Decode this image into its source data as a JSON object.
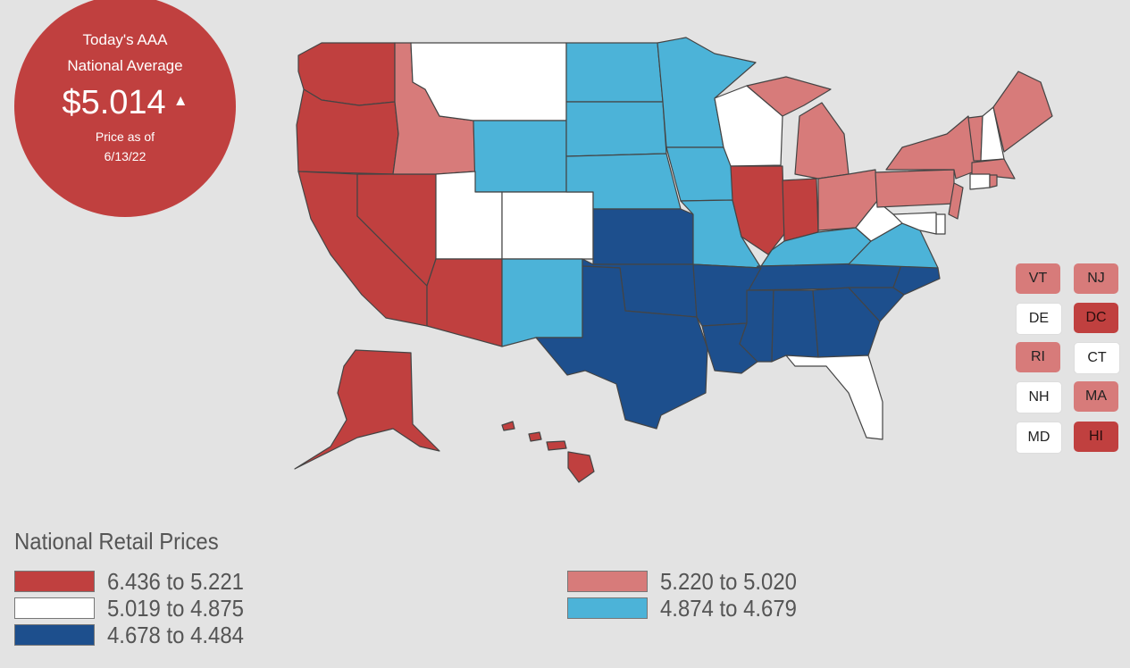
{
  "badge": {
    "line1": "Today's AAA",
    "line2": "National Average",
    "price": "$5.014",
    "trend_icon": "triangle-up-icon",
    "date_line1": "Price as of",
    "date_line2": "6/13/22"
  },
  "colors": {
    "c1": "#c0403f",
    "c2": "#d77b7a",
    "c3": "#ffffff",
    "c4": "#4cb3d8",
    "c5": "#1d4f8d",
    "border": "#444444"
  },
  "states": {
    "WA": "c1",
    "OR": "c1",
    "CA": "c1",
    "NV": "c1",
    "AZ": "c1",
    "AK": "c1",
    "HI": "c1",
    "IL": "c1",
    "IN": "c1",
    "ID": "c2",
    "MI": "c2",
    "OH": "c2",
    "PA": "c2",
    "NY": "c2",
    "ME": "c2",
    "NJ": "c2",
    "VT": "c2",
    "MA": "c2",
    "RI": "c2",
    "MT": "c3",
    "UT": "c3",
    "CO": "c3",
    "WI": "c3",
    "FL": "c3",
    "WV": "c3",
    "NH": "c3",
    "CT": "c3",
    "DE": "c3",
    "MD": "c3",
    "WY": "c4",
    "ND": "c4",
    "SD": "c4",
    "NE": "c4",
    "MN": "c4",
    "IA": "c4",
    "MO": "c4",
    "NM": "c4",
    "KY": "c4",
    "VA": "c4",
    "KS": "c5",
    "OK": "c5",
    "TX": "c5",
    "AR": "c5",
    "LA": "c5",
    "MS": "c5",
    "AL": "c5",
    "GA": "c5",
    "TN": "c5",
    "SC": "c5",
    "NC": "c5"
  },
  "small_states": [
    {
      "label": "VT",
      "color": "c2"
    },
    {
      "label": "NJ",
      "color": "c2"
    },
    {
      "label": "DE",
      "color": "c3"
    },
    {
      "label": "DC",
      "color": "c1"
    },
    {
      "label": "RI",
      "color": "c2"
    },
    {
      "label": "CT",
      "color": "c3"
    },
    {
      "label": "NH",
      "color": "c3"
    },
    {
      "label": "MA",
      "color": "c2"
    },
    {
      "label": "MD",
      "color": "c3"
    },
    {
      "label": "HI",
      "color": "c1"
    }
  ],
  "legend": {
    "title": "National Retail Prices",
    "items": [
      {
        "label": "6.436 to 5.221",
        "color": "c1"
      },
      {
        "label": "5.019 to 4.875",
        "color": "c3"
      },
      {
        "label": "4.678 to 4.484",
        "color": "c5"
      },
      {
        "label": "5.220 to 5.020",
        "color": "c2"
      },
      {
        "label": "4.874 to 4.679",
        "color": "c4"
      }
    ]
  }
}
